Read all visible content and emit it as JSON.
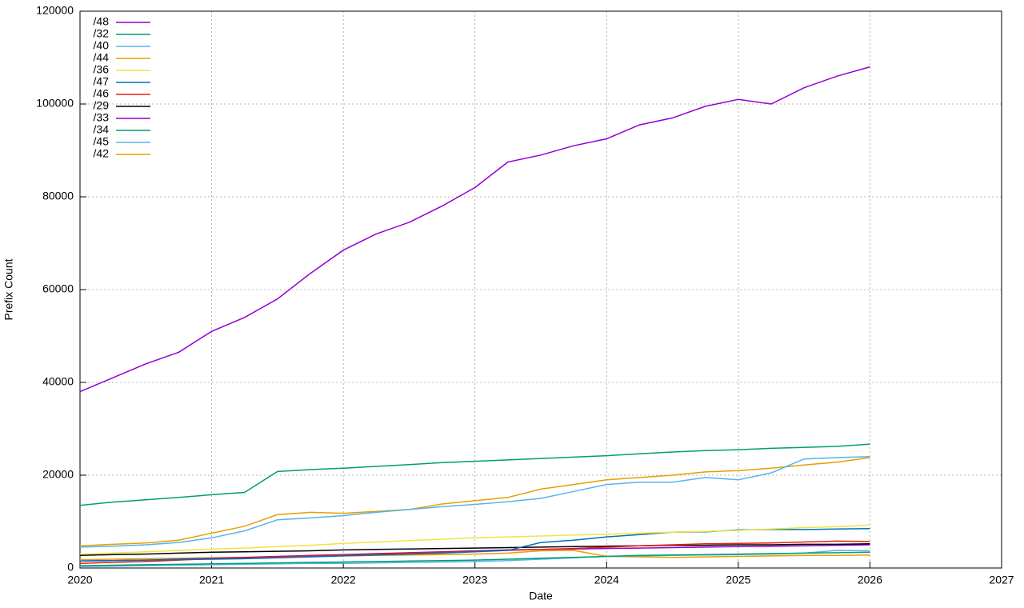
{
  "chart_data": {
    "type": "line",
    "xlabel": "Date",
    "ylabel": "Prefix Count",
    "x": [
      2020,
      2020.25,
      2020.5,
      2020.75,
      2021,
      2021.25,
      2021.5,
      2021.75,
      2022,
      2022.25,
      2022.5,
      2022.75,
      2023,
      2023.25,
      2023.5,
      2023.75,
      2024,
      2024.25,
      2024.5,
      2024.75,
      2025,
      2025.25,
      2025.5,
      2025.75,
      2026
    ],
    "xlim": [
      2020,
      2027
    ],
    "xticks": [
      2020,
      2021,
      2022,
      2023,
      2024,
      2025,
      2026,
      2027
    ],
    "ylim": [
      0,
      120000
    ],
    "yticks": [
      0,
      20000,
      40000,
      60000,
      80000,
      100000,
      120000
    ],
    "grid": true,
    "legend": "top-left",
    "series": [
      {
        "name": "/48",
        "color": "#9400d3",
        "values": [
          38000,
          41000,
          44000,
          46500,
          51000,
          54000,
          58000,
          63500,
          68500,
          72000,
          74500,
          78000,
          82000,
          87500,
          89000,
          91000,
          92500,
          95500,
          97000,
          99500,
          101000,
          100000,
          103500,
          106000,
          108000
        ]
      },
      {
        "name": "/32",
        "color": "#009e73",
        "values": [
          13500,
          14200,
          14700,
          15200,
          15800,
          16300,
          20800,
          21200,
          21500,
          21900,
          22300,
          22700,
          23000,
          23300,
          23600,
          23900,
          24200,
          24600,
          25000,
          25300,
          25500,
          25800,
          26000,
          26200,
          26700
        ]
      },
      {
        "name": "/40",
        "color": "#56b4e9",
        "values": [
          4500,
          4700,
          5000,
          5500,
          6500,
          8000,
          10400,
          10800,
          11300,
          12000,
          12600,
          13200,
          13700,
          14300,
          15000,
          16500,
          18000,
          18500,
          18500,
          19500,
          19000,
          20500,
          23500,
          23800,
          24000
        ]
      },
      {
        "name": "/44",
        "color": "#e69f00",
        "values": [
          4800,
          5100,
          5400,
          6000,
          7500,
          9000,
          11500,
          12000,
          11800,
          12200,
          12600,
          13800,
          14500,
          15200,
          17000,
          18000,
          19000,
          19500,
          20000,
          20700,
          21000,
          21500,
          22200,
          22800,
          23800
        ]
      },
      {
        "name": "/36",
        "color": "#f0e442",
        "values": [
          3000,
          3200,
          3500,
          3800,
          4100,
          4300,
          4600,
          4900,
          5300,
          5600,
          5900,
          6200,
          6500,
          6700,
          6900,
          7100,
          7300,
          7500,
          7700,
          7900,
          8100,
          8400,
          8700,
          8900,
          9300
        ]
      },
      {
        "name": "/47",
        "color": "#0072b2",
        "values": [
          1500,
          1600,
          1700,
          1800,
          1900,
          2000,
          2200,
          2400,
          2600,
          2800,
          3000,
          3200,
          3500,
          3800,
          5500,
          6000,
          6700,
          7200,
          7700,
          7800,
          8200,
          8300,
          8300,
          8400,
          8500
        ]
      },
      {
        "name": "/46",
        "color": "#e51e10",
        "values": [
          1000,
          1200,
          1400,
          1700,
          2000,
          2200,
          2400,
          2600,
          2800,
          3000,
          3200,
          3400,
          3600,
          3800,
          4000,
          4200,
          4500,
          4800,
          5000,
          5200,
          5300,
          5400,
          5600,
          5800,
          5700
        ]
      },
      {
        "name": "/29",
        "color": "#000000",
        "values": [
          2700,
          2900,
          3000,
          3200,
          3400,
          3500,
          3600,
          3700,
          3900,
          4000,
          4100,
          4200,
          4300,
          4400,
          4500,
          4600,
          4700,
          4800,
          4900,
          4900,
          5000,
          5000,
          5100,
          5100,
          5200
        ]
      },
      {
        "name": "/33",
        "color": "#9400d3",
        "values": [
          1500,
          1600,
          1700,
          1900,
          2100,
          2300,
          2500,
          2700,
          2900,
          3100,
          3300,
          3500,
          3700,
          3900,
          4000,
          4100,
          4200,
          4300,
          4400,
          4500,
          4600,
          4700,
          4800,
          4900,
          5000
        ]
      },
      {
        "name": "/34",
        "color": "#009e73",
        "values": [
          500,
          600,
          700,
          800,
          900,
          1000,
          1100,
          1200,
          1300,
          1400,
          1500,
          1600,
          1700,
          1900,
          2100,
          2300,
          2500,
          2700,
          2800,
          2900,
          3000,
          3100,
          3200,
          3300,
          3400
        ]
      },
      {
        "name": "/45",
        "color": "#56b4e9",
        "values": [
          300,
          400,
          500,
          600,
          700,
          800,
          900,
          1000,
          1000,
          1100,
          1200,
          1300,
          1400,
          1600,
          1900,
          2200,
          2500,
          2600,
          2700,
          2800,
          2900,
          3000,
          3200,
          3800,
          3700
        ]
      },
      {
        "name": "/42",
        "color": "#e69f00",
        "values": [
          1800,
          1900,
          2000,
          2100,
          2200,
          2300,
          2400,
          2500,
          2600,
          2700,
          2800,
          2900,
          3000,
          3200,
          3700,
          3800,
          2500,
          2400,
          2300,
          2400,
          2500,
          2600,
          2700,
          2700,
          2800
        ]
      }
    ]
  }
}
